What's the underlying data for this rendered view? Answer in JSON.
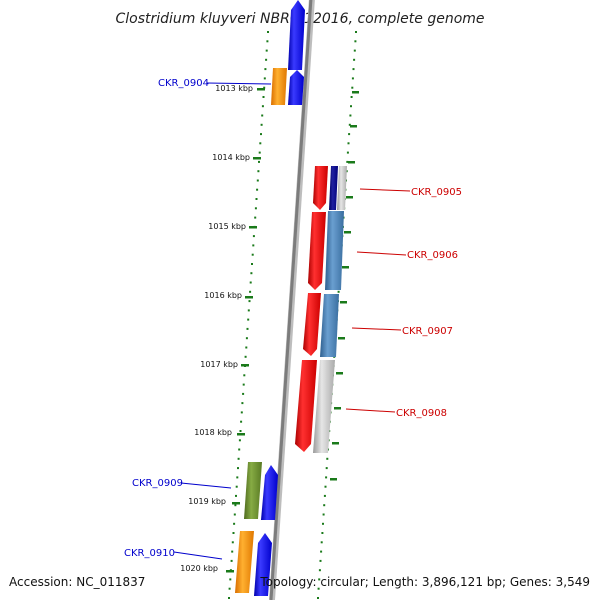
{
  "title": "Clostridium kluyveri NBRC 12016, complete genome",
  "footer": {
    "accession": "Accession: NC_011837",
    "summary": "Topology: circular; Length: 3,896,121 bp; Genes: 3,549"
  },
  "colors": {
    "axis": "#888888",
    "tick": "#1a7a1a",
    "label_left": "#0000cc",
    "label_right": "#cc0000"
  },
  "ticks": [
    "1013 kbp",
    "1014 kbp",
    "1015 kbp",
    "1016 kbp",
    "1017 kbp",
    "1018 kbp",
    "1019 kbp",
    "1020 kbp"
  ],
  "genes": [
    {
      "label": "CKR_0904",
      "side": "left"
    },
    {
      "label": "CKR_0905",
      "side": "right"
    },
    {
      "label": "CKR_0906",
      "side": "right"
    },
    {
      "label": "CKR_0907",
      "side": "right"
    },
    {
      "label": "CKR_0908",
      "side": "right"
    },
    {
      "label": "CKR_0909",
      "side": "left"
    },
    {
      "label": "CKR_0910",
      "side": "left"
    }
  ]
}
